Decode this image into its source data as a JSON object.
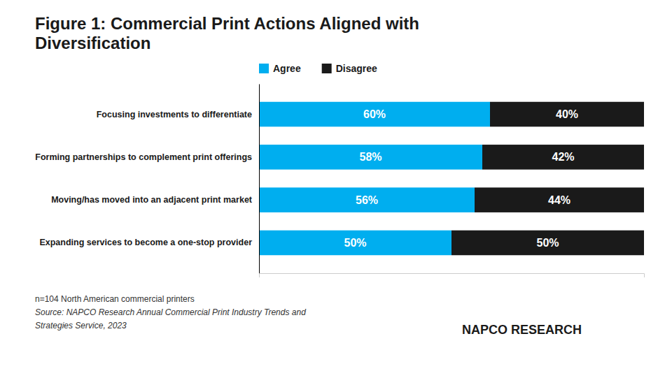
{
  "chart_data": {
    "type": "bar",
    "orientation": "horizontal",
    "stacked": true,
    "title": "Figure 1: Commercial Print Actions Aligned with\nDiversification",
    "categories": [
      "Expanding services to become a one-stop provider",
      "Moving/has moved into an adjacent print market",
      "Forming partnerships to complement print offerings",
      "Focusing investments to differentiate"
    ],
    "series": [
      {
        "name": "Agree",
        "color": "#00AEEF",
        "values": [
          50,
          56,
          58,
          60
        ],
        "value_labels": [
          "50%",
          "56%",
          "58%",
          "60%"
        ]
      },
      {
        "name": "Disagree",
        "color": "#1a1a1a",
        "values": [
          50,
          44,
          42,
          40
        ],
        "value_labels": [
          "50%",
          "44%",
          "42%",
          "40%"
        ]
      }
    ],
    "xlim": [
      0,
      100
    ],
    "data_labels": true,
    "tick_labels": "y",
    "legend": "top-left",
    "annotations": [
      "n=104 North American commercial printers",
      "Source: NAPCO Research Annual Commercial Print Industry Trends and",
      "Strategies Service, 2023",
      "NAPCO RESEARCH"
    ]
  }
}
